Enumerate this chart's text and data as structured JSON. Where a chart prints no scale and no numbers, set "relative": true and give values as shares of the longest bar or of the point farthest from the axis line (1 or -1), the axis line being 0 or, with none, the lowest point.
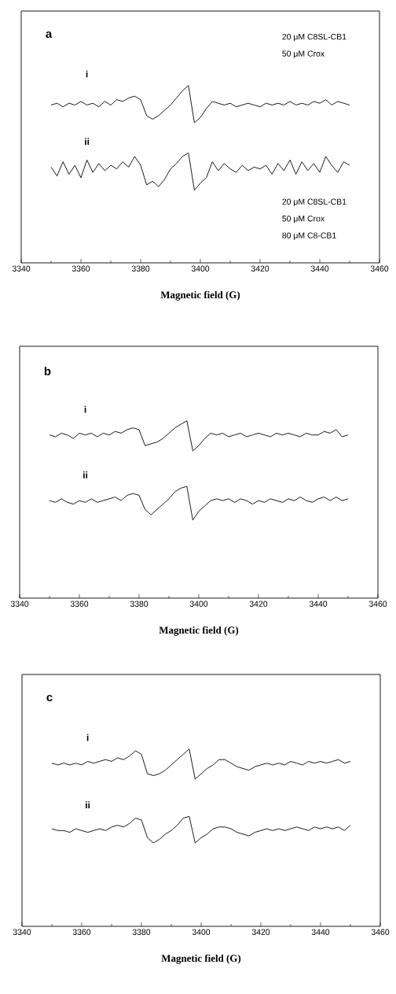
{
  "chart_data": [
    {
      "type": "line",
      "title": "a",
      "xlabel": "Magnetic field (G)",
      "relative": true,
      "xlim": [
        3340,
        3460
      ],
      "xticks": [
        3340,
        3360,
        3380,
        3400,
        3420,
        3440,
        3460
      ],
      "x": [
        3350,
        3352,
        3354,
        3356,
        3358,
        3360,
        3362,
        3364,
        3366,
        3368,
        3370,
        3372,
        3374,
        3376,
        3378,
        3380,
        3382,
        3384,
        3386,
        3388,
        3390,
        3392,
        3394,
        3396,
        3398,
        3400,
        3402,
        3404,
        3406,
        3408,
        3410,
        3412,
        3414,
        3416,
        3418,
        3420,
        3422,
        3424,
        3426,
        3428,
        3430,
        3432,
        3434,
        3436,
        3438,
        3440,
        3442,
        3444,
        3446,
        3448,
        3450
      ],
      "series": [
        {
          "name": "i",
          "color": "#000000",
          "values": [
            0.89,
            0.9,
            0.88,
            0.9,
            0.89,
            0.91,
            0.89,
            0.9,
            0.88,
            0.91,
            0.89,
            0.92,
            0.91,
            0.93,
            0.94,
            0.92,
            0.83,
            0.81,
            0.83,
            0.86,
            0.89,
            0.93,
            0.97,
            1.0,
            0.79,
            0.82,
            0.87,
            0.91,
            0.9,
            0.89,
            0.9,
            0.88,
            0.89,
            0.9,
            0.89,
            0.88,
            0.9,
            0.89,
            0.9,
            0.89,
            0.91,
            0.89,
            0.9,
            0.89,
            0.91,
            0.9,
            0.92,
            0.89,
            0.91,
            0.9,
            0.89
          ]
        },
        {
          "name": "ii",
          "color": "#000000",
          "values": [
            0.54,
            0.49,
            0.57,
            0.5,
            0.55,
            0.48,
            0.58,
            0.51,
            0.56,
            0.52,
            0.55,
            0.53,
            0.57,
            0.54,
            0.6,
            0.55,
            0.44,
            0.46,
            0.43,
            0.47,
            0.53,
            0.56,
            0.6,
            0.62,
            0.41,
            0.45,
            0.48,
            0.57,
            0.52,
            0.56,
            0.53,
            0.51,
            0.55,
            0.52,
            0.54,
            0.53,
            0.55,
            0.5,
            0.56,
            0.52,
            0.58,
            0.5,
            0.57,
            0.52,
            0.56,
            0.51,
            0.6,
            0.55,
            0.51,
            0.57,
            0.55
          ]
        }
      ],
      "annotations": [
        "20 μM C8SL-CB1",
        "50 μM Crox",
        "20 μM C8SL-CB1",
        "50 μM Crox",
        "80 μM C8-CB1"
      ]
    },
    {
      "type": "line",
      "title": "b",
      "xlabel": "Magnetic field (G)",
      "relative": true,
      "xlim": [
        3340,
        3460
      ],
      "xticks": [
        3340,
        3360,
        3380,
        3400,
        3420,
        3440,
        3460
      ],
      "x": [
        3350,
        3352,
        3354,
        3356,
        3358,
        3360,
        3362,
        3364,
        3366,
        3368,
        3370,
        3372,
        3374,
        3376,
        3378,
        3380,
        3382,
        3384,
        3386,
        3388,
        3390,
        3392,
        3394,
        3396,
        3398,
        3400,
        3402,
        3404,
        3406,
        3408,
        3410,
        3412,
        3414,
        3416,
        3418,
        3420,
        3422,
        3424,
        3426,
        3428,
        3430,
        3432,
        3434,
        3436,
        3438,
        3440,
        3442,
        3444,
        3446,
        3448,
        3450
      ],
      "series": [
        {
          "name": "i",
          "color": "#000000",
          "values": [
            0.92,
            0.91,
            0.93,
            0.92,
            0.9,
            0.93,
            0.92,
            0.93,
            0.91,
            0.93,
            0.92,
            0.94,
            0.93,
            0.95,
            0.96,
            0.95,
            0.86,
            0.87,
            0.88,
            0.9,
            0.93,
            0.96,
            0.98,
            1.0,
            0.83,
            0.86,
            0.9,
            0.93,
            0.92,
            0.93,
            0.91,
            0.92,
            0.93,
            0.91,
            0.92,
            0.93,
            0.92,
            0.91,
            0.93,
            0.92,
            0.93,
            0.92,
            0.91,
            0.93,
            0.92,
            0.92,
            0.94,
            0.93,
            0.95,
            0.91,
            0.92
          ]
        },
        {
          "name": "ii",
          "color": "#000000",
          "values": [
            0.55,
            0.54,
            0.56,
            0.54,
            0.53,
            0.55,
            0.54,
            0.56,
            0.54,
            0.55,
            0.56,
            0.57,
            0.55,
            0.58,
            0.59,
            0.58,
            0.5,
            0.47,
            0.5,
            0.53,
            0.56,
            0.6,
            0.62,
            0.63,
            0.44,
            0.49,
            0.52,
            0.55,
            0.56,
            0.55,
            0.56,
            0.54,
            0.56,
            0.55,
            0.53,
            0.55,
            0.54,
            0.56,
            0.55,
            0.54,
            0.56,
            0.55,
            0.57,
            0.55,
            0.54,
            0.56,
            0.57,
            0.55,
            0.57,
            0.55,
            0.56
          ]
        }
      ]
    },
    {
      "type": "line",
      "title": "c",
      "xlabel": "Magnetic field (G)",
      "relative": true,
      "xlim": [
        3340,
        3460
      ],
      "xticks": [
        3340,
        3360,
        3380,
        3400,
        3420,
        3440,
        3460
      ],
      "x": [
        3350,
        3352,
        3354,
        3356,
        3358,
        3360,
        3362,
        3364,
        3366,
        3368,
        3370,
        3372,
        3374,
        3376,
        3378,
        3380,
        3382,
        3384,
        3386,
        3388,
        3390,
        3392,
        3394,
        3396,
        3398,
        3400,
        3402,
        3404,
        3406,
        3408,
        3410,
        3412,
        3414,
        3416,
        3418,
        3420,
        3422,
        3424,
        3426,
        3428,
        3430,
        3432,
        3434,
        3436,
        3438,
        3440,
        3442,
        3444,
        3446,
        3448,
        3450
      ],
      "series": [
        {
          "name": "i",
          "color": "#000000",
          "values": [
            0.92,
            0.91,
            0.92,
            0.91,
            0.92,
            0.91,
            0.93,
            0.92,
            0.93,
            0.94,
            0.93,
            0.95,
            0.94,
            0.96,
            0.99,
            0.97,
            0.86,
            0.85,
            0.86,
            0.88,
            0.91,
            0.94,
            0.97,
            1.0,
            0.83,
            0.86,
            0.89,
            0.91,
            0.94,
            0.94,
            0.92,
            0.9,
            0.89,
            0.88,
            0.9,
            0.91,
            0.92,
            0.91,
            0.92,
            0.91,
            0.93,
            0.92,
            0.91,
            0.93,
            0.92,
            0.93,
            0.92,
            0.93,
            0.94,
            0.92,
            0.93
          ]
        },
        {
          "name": "ii",
          "color": "#000000",
          "values": [
            0.55,
            0.54,
            0.54,
            0.53,
            0.55,
            0.54,
            0.53,
            0.54,
            0.55,
            0.54,
            0.56,
            0.57,
            0.56,
            0.58,
            0.61,
            0.6,
            0.5,
            0.47,
            0.49,
            0.52,
            0.54,
            0.57,
            0.61,
            0.62,
            0.47,
            0.5,
            0.52,
            0.55,
            0.56,
            0.56,
            0.55,
            0.53,
            0.52,
            0.51,
            0.53,
            0.54,
            0.55,
            0.54,
            0.55,
            0.54,
            0.55,
            0.56,
            0.55,
            0.54,
            0.56,
            0.55,
            0.56,
            0.55,
            0.56,
            0.54,
            0.57
          ]
        }
      ]
    }
  ]
}
